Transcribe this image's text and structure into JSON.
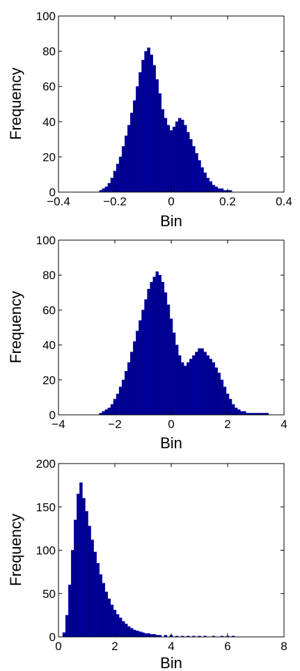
{
  "chart_data": [
    {
      "type": "bar",
      "title": "",
      "xlabel": "Bin",
      "ylabel": "Frequency",
      "xlim": [
        -0.4,
        0.4
      ],
      "ylim": [
        0,
        100
      ],
      "xticks": [
        "-0.4",
        "-0.2",
        "0",
        "0.2",
        "0.4"
      ],
      "yticks": [
        "0",
        "20",
        "40",
        "60",
        "80",
        "100"
      ],
      "grid": false,
      "color": "#00008B",
      "series": [
        {
          "x": [
            -0.25,
            -0.24,
            -0.23,
            -0.22,
            -0.21,
            -0.2,
            -0.19,
            -0.18,
            -0.17,
            -0.16,
            -0.15,
            -0.14,
            -0.13,
            -0.12,
            -0.11,
            -0.1,
            -0.09,
            -0.08,
            -0.07,
            -0.06,
            -0.05,
            -0.04,
            -0.03,
            -0.02,
            -0.01,
            0,
            0.01,
            0.02,
            0.03,
            0.04,
            0.05,
            0.06,
            0.07,
            0.08,
            0.09,
            0.1,
            0.11,
            0.12,
            0.13,
            0.14,
            0.15,
            0.16,
            0.17,
            0.18,
            0.19,
            0.2,
            0.21
          ],
          "values": [
            1,
            2,
            3,
            5,
            8,
            12,
            16,
            20,
            26,
            32,
            38,
            45,
            52,
            60,
            68,
            75,
            80,
            82,
            78,
            72,
            64,
            56,
            47,
            42,
            38,
            35,
            37,
            40,
            42,
            41,
            38,
            34,
            30,
            26,
            22,
            18,
            14,
            11,
            8,
            6,
            4,
            3,
            2,
            2,
            1,
            1,
            1
          ]
        }
      ]
    },
    {
      "type": "bar",
      "title": "",
      "xlabel": "Bin",
      "ylabel": "Frequency",
      "xlim": [
        -4,
        4
      ],
      "ylim": [
        0,
        100
      ],
      "xticks": [
        "-4",
        "-2",
        "0",
        "2",
        "4"
      ],
      "yticks": [
        "0",
        "20",
        "40",
        "60",
        "80",
        "100"
      ],
      "grid": false,
      "color": "#00008B",
      "series": [
        {
          "x": [
            -2.5,
            -2.4,
            -2.3,
            -2.2,
            -2.1,
            -2,
            -1.9,
            -1.8,
            -1.7,
            -1.6,
            -1.5,
            -1.4,
            -1.3,
            -1.2,
            -1.1,
            -1,
            -0.9,
            -0.8,
            -0.7,
            -0.6,
            -0.5,
            -0.4,
            -0.3,
            -0.2,
            -0.1,
            0,
            0.1,
            0.2,
            0.3,
            0.4,
            0.5,
            0.6,
            0.7,
            0.8,
            0.9,
            1,
            1.1,
            1.2,
            1.3,
            1.4,
            1.5,
            1.6,
            1.7,
            1.8,
            1.9,
            2,
            2.1,
            2.2,
            2.3,
            2.4,
            2.5,
            2.6,
            2.7,
            2.8,
            2.9,
            3,
            3.1,
            3.2,
            3.3,
            3.4
          ],
          "values": [
            1,
            2,
            3,
            4,
            6,
            9,
            12,
            16,
            20,
            25,
            30,
            36,
            42,
            48,
            54,
            60,
            66,
            72,
            76,
            79,
            82,
            80,
            76,
            70,
            63,
            55,
            47,
            40,
            34,
            30,
            28,
            30,
            32,
            34,
            36,
            38,
            38,
            36,
            34,
            32,
            30,
            27,
            24,
            20,
            16,
            12,
            9,
            6,
            4,
            3,
            2,
            2,
            1,
            1,
            1,
            1,
            1,
            1,
            1,
            1
          ]
        }
      ]
    },
    {
      "type": "bar",
      "title": "",
      "xlabel": "Bin",
      "ylabel": "Frequency",
      "xlim": [
        0,
        8
      ],
      "ylim": [
        0,
        200
      ],
      "xticks": [
        "0",
        "2",
        "4",
        "6",
        "8"
      ],
      "yticks": [
        "0",
        "50",
        "100",
        "150",
        "200"
      ],
      "grid": false,
      "color": "#00008B",
      "series": [
        {
          "x": [
            0.2,
            0.3,
            0.4,
            0.5,
            0.6,
            0.7,
            0.8,
            0.9,
            1,
            1.1,
            1.2,
            1.3,
            1.4,
            1.5,
            1.6,
            1.7,
            1.8,
            1.9,
            2,
            2.1,
            2.2,
            2.3,
            2.4,
            2.5,
            2.6,
            2.7,
            2.8,
            2.9,
            3,
            3.1,
            3.2,
            3.3,
            3.4,
            3.5,
            3.6,
            3.8,
            4,
            4.2,
            4.4,
            4.6,
            4.8,
            5,
            5.2,
            5.5,
            5.8,
            6,
            6.2
          ],
          "values": [
            5,
            25,
            60,
            100,
            135,
            165,
            178,
            160,
            145,
            128,
            112,
            98,
            85,
            72,
            62,
            52,
            44,
            37,
            31,
            26,
            22,
            18,
            15,
            12,
            10,
            8,
            7,
            6,
            5,
            4,
            4,
            3,
            3,
            2,
            2,
            2,
            2,
            1,
            1,
            1,
            1,
            1,
            1,
            1,
            1,
            1,
            1
          ]
        }
      ]
    }
  ]
}
